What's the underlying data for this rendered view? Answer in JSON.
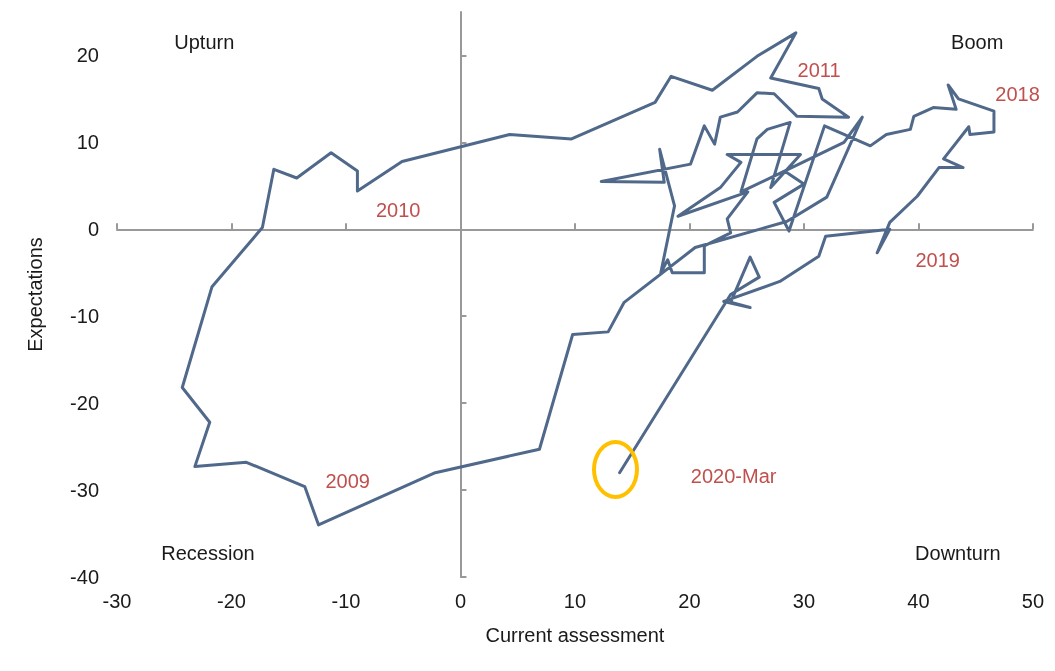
{
  "chart_data": {
    "type": "line",
    "xlabel": "Current assessment",
    "ylabel": "Expectations",
    "xlim": [
      -30,
      50
    ],
    "ylim": [
      -40,
      25
    ],
    "xticks": [
      -30,
      -20,
      -10,
      0,
      10,
      20,
      30,
      40,
      50
    ],
    "yticks": [
      -40,
      -30,
      -20,
      -10,
      0,
      10,
      20
    ],
    "marker": "none",
    "line_style": "solid",
    "series": [
      {
        "color": "#50698a",
        "x": [
          28.3,
          33.5,
          35.1,
          32.0,
          28.5,
          20.5,
          14.3,
          12.9,
          9.8,
          6.9,
          -2.2,
          -12.4,
          -13.6,
          -18.7,
          -23.2,
          -21.9,
          -24.3,
          -21.7,
          -17.3,
          -16.3,
          -14.3,
          -11.3,
          -9.0,
          -9.0,
          -5.1,
          4.3,
          9.7,
          17.0,
          18.4,
          22.0,
          25.9,
          29.3,
          27.1,
          31.3,
          31.6,
          33.9,
          29.4,
          27.4,
          25.9,
          24.2,
          22.7,
          22.2,
          21.3,
          20.1,
          12.3,
          17.8,
          17.4,
          18.7,
          17.5,
          18.1,
          18.5,
          21.3,
          21.3,
          23.6,
          23.3,
          25.1,
          19.0,
          22.7,
          24.5,
          23.3,
          29.7,
          27.1,
          28.8,
          26.8,
          25.9,
          24.5,
          28.3,
          30.0,
          27.4,
          28.7,
          31.8,
          35.8,
          37.2,
          39.3,
          39.6,
          41.3,
          43.3,
          42.6,
          43.5,
          46.6,
          46.6,
          44.5,
          44.4,
          42.2,
          43.9,
          41.8,
          39.9,
          37.5,
          36.4,
          37.5,
          31.9,
          31.3,
          27.9,
          23.0,
          25.3,
          23.6,
          25.3,
          26.1,
          23.6,
          13.9
        ],
        "values": [
          6.7,
          10.0,
          12.9,
          3.7,
          0.9,
          -2.1,
          -8.4,
          -11.8,
          -12.1,
          -25.3,
          -28.0,
          -34.0,
          -29.6,
          -26.8,
          -27.3,
          -22.2,
          -18.2,
          -6.6,
          0.2,
          6.9,
          5.9,
          8.8,
          6.7,
          4.4,
          7.8,
          10.9,
          10.4,
          14.6,
          17.6,
          16.0,
          19.9,
          22.6,
          17.4,
          16.2,
          15.0,
          12.9,
          13.0,
          15.6,
          15.7,
          13.5,
          12.9,
          9.8,
          11.9,
          7.5,
          5.5,
          5.4,
          9.2,
          2.7,
          -5.0,
          -3.5,
          -5.0,
          -5.0,
          -1.9,
          -0.4,
          1.2,
          4.3,
          1.5,
          4.8,
          7.7,
          8.6,
          8.6,
          4.8,
          12.3,
          11.5,
          10.4,
          4.3,
          6.7,
          5.2,
          3.1,
          -0.2,
          11.9,
          9.6,
          10.9,
          11.5,
          13.0,
          14.0,
          13.8,
          16.6,
          15.0,
          13.6,
          11.2,
          10.9,
          11.8,
          8.1,
          7.1,
          7.1,
          3.8,
          0.8,
          -2.7,
          0.0,
          -0.8,
          -3.1,
          -6.0,
          -8.3,
          -9.0,
          -8.4,
          -3.2,
          -5.5,
          -7.5,
          -28.0
        ]
      }
    ],
    "annotations": [
      "Upturn",
      "Boom",
      "Recession",
      "Downturn",
      "2010",
      "2011",
      "2018",
      "2019",
      "2009",
      "2020-Mar"
    ]
  }
}
